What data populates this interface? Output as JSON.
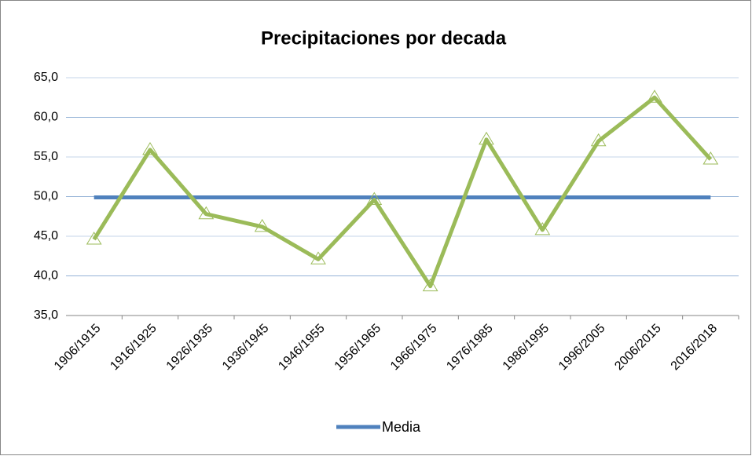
{
  "chart_data": {
    "type": "line",
    "title": "Precipitaciones por decada",
    "categories": [
      "1906/1915",
      "1916/1925",
      "1926/1935",
      "1936/1945",
      "1946/1955",
      "1956/1965",
      "1966/1975",
      "1976/1985",
      "1986/1995",
      "1996/2005",
      "2006/2015",
      "2016/2018"
    ],
    "series": [
      {
        "color": "#9bbb59",
        "marker": "triangle",
        "values": [
          44.6,
          55.9,
          47.8,
          46.2,
          42.1,
          49.6,
          38.7,
          57.2,
          45.8,
          57.0,
          62.5,
          54.7
        ]
      },
      {
        "name": "Media",
        "color": "#4f81bd",
        "values": [
          49.9,
          49.9,
          49.9,
          49.9,
          49.9,
          49.9,
          49.9,
          49.9,
          49.9,
          49.9,
          49.9,
          49.9
        ]
      }
    ],
    "ylim": [
      35,
      65
    ],
    "yticks": [
      {
        "value": 35,
        "label": "35,0"
      },
      {
        "value": 40,
        "label": "40,0"
      },
      {
        "value": 45,
        "label": "45,0"
      },
      {
        "value": 50,
        "label": "50,0"
      },
      {
        "value": 55,
        "label": "55,0"
      },
      {
        "value": 60,
        "label": "60,0"
      },
      {
        "value": 65,
        "label": "65,0"
      }
    ],
    "grid": true,
    "legend": "bottom"
  }
}
